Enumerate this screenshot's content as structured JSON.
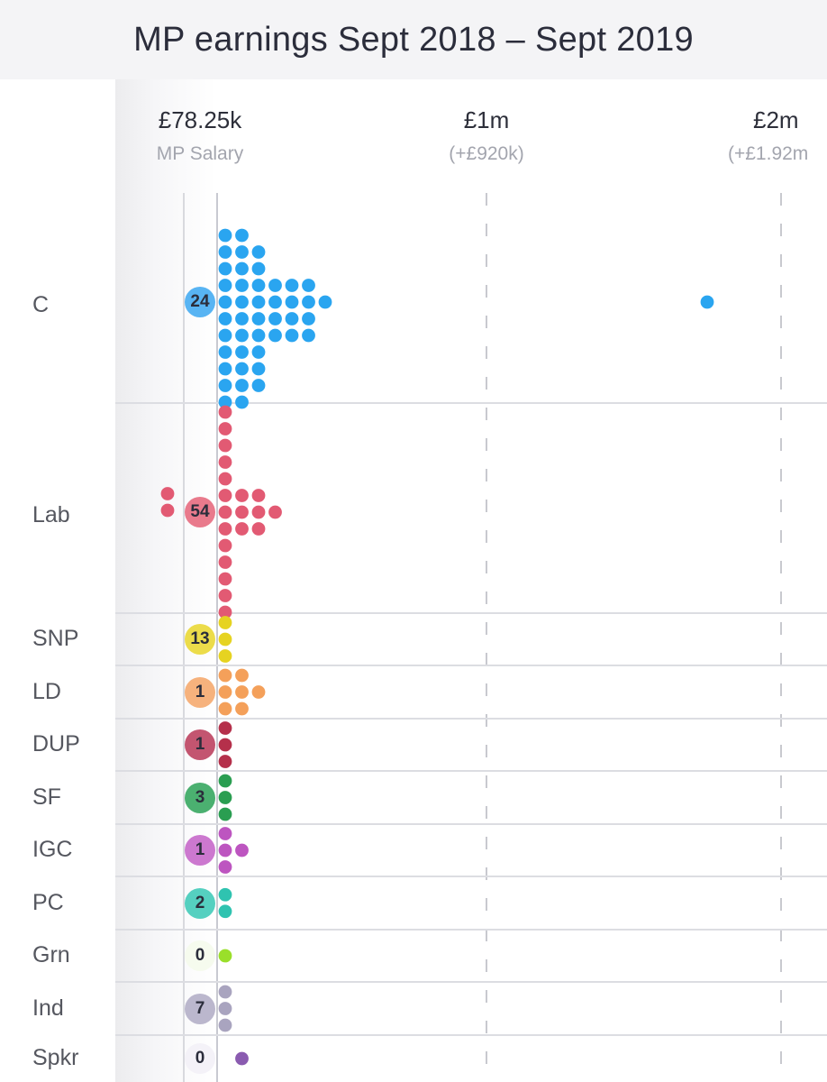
{
  "title": "MP earnings Sept 2018 – Sept 2019",
  "axis": [
    {
      "value": "£78.25k",
      "note": "MP Salary"
    },
    {
      "value": "£1m",
      "note": "(+£920k)"
    },
    {
      "value": "£2m",
      "note": "(+£1.92m"
    }
  ],
  "chart_data": {
    "type": "scatter",
    "title": "MP earnings Sept 2018 – Sept 2019",
    "xlabel": "",
    "ylabel": "",
    "x_ticks": [
      "£78.25k",
      "£1m",
      "£2m"
    ],
    "x_tick_notes": [
      "MP Salary",
      "(+£920k)",
      "(+£1.92m"
    ],
    "categories": [
      "C",
      "Lab",
      "SNP",
      "LD",
      "DUP",
      "SF",
      "IGC",
      "PC",
      "Grn",
      "Ind",
      "Spkr"
    ],
    "no_extra_earnings_counts": [
      24,
      54,
      13,
      1,
      1,
      3,
      1,
      2,
      0,
      7,
      0
    ],
    "grid": "horizontal separators, dashed vertical lines at £1m and £2m",
    "series": [
      {
        "category": "C",
        "color": "#2aa5f0",
        "badge_color": "#58b4f3",
        "columns": [
          [
            0,
            0,
            1,
            1,
            1,
            1,
            1,
            1,
            1,
            1,
            1,
            1,
            1
          ],
          [
            0,
            0,
            1,
            1,
            1,
            1,
            1,
            1,
            1,
            1,
            1,
            1,
            1
          ],
          [
            0,
            0,
            0,
            1,
            1,
            1,
            1,
            1,
            1,
            1,
            1,
            1,
            0
          ],
          [
            0,
            0,
            0,
            0,
            0,
            1,
            1,
            1,
            1,
            0,
            0,
            0,
            0
          ],
          [
            0,
            0,
            0,
            0,
            0,
            1,
            1,
            1,
            1,
            0,
            0,
            0,
            0
          ],
          [
            0,
            0,
            0,
            0,
            0,
            1,
            1,
            1,
            1,
            0,
            0,
            0,
            0
          ],
          [
            0,
            0,
            0,
            0,
            0,
            0,
            1,
            0,
            0,
            0,
            0,
            0,
            0
          ]
        ],
        "outliers": [
          {
            "x_position": "approx £1.8m",
            "row": 6
          }
        ]
      },
      {
        "category": "Lab",
        "color": "#e25a73",
        "badge_color": "#e97a8c",
        "columns": [
          [
            1,
            1,
            1,
            1,
            1,
            1,
            1,
            1,
            1,
            1,
            1,
            1,
            1
          ],
          [
            0,
            0,
            0,
            0,
            0,
            1,
            1,
            1,
            0,
            0,
            0,
            0,
            0
          ],
          [
            0,
            0,
            0,
            0,
            0,
            1,
            1,
            1,
            0,
            0,
            0,
            0,
            0
          ],
          [
            0,
            0,
            0,
            0,
            0,
            0,
            1,
            0,
            0,
            0,
            0,
            0,
            0
          ]
        ],
        "below": [
          {
            "column": -2,
            "rows": [
              5,
              6
            ]
          }
        ]
      },
      {
        "category": "SNP",
        "color": "#e6d321",
        "badge_color": "#ecdc4a",
        "columns": [
          [
            1,
            1,
            1
          ]
        ]
      },
      {
        "category": "LD",
        "color": "#f4a05a",
        "badge_color": "#f6b27d",
        "columns": [
          [
            1,
            1,
            1
          ],
          [
            1,
            1,
            1
          ],
          [
            0,
            1,
            0
          ]
        ]
      },
      {
        "category": "DUP",
        "color": "#b5304b",
        "badge_color": "#c35570",
        "columns": [
          [
            1,
            1,
            1
          ]
        ]
      },
      {
        "category": "SF",
        "color": "#2a9e51",
        "badge_color": "#4bb070",
        "columns": [
          [
            1,
            1,
            1
          ]
        ]
      },
      {
        "category": "IGC",
        "color": "#bd55c0",
        "badge_color": "#cc78cf",
        "columns": [
          [
            1,
            1,
            1
          ],
          [
            0,
            1,
            0
          ]
        ]
      },
      {
        "category": "PC",
        "color": "#2fc3b0",
        "badge_color": "#55d0c0",
        "columns": [
          [
            1,
            1
          ]
        ]
      },
      {
        "category": "Grn",
        "color": "#9adf2a",
        "badge_color": "#f6fbee",
        "columns": [
          [
            1
          ]
        ]
      },
      {
        "category": "Ind",
        "color": "#a9a4bf",
        "badge_color": "#bbb7cd",
        "columns": [
          [
            1,
            1,
            1
          ]
        ]
      },
      {
        "category": "Spkr",
        "color": "#8a5bb0",
        "badge_color": "#f4f2f8",
        "columns": [
          [
            0
          ],
          [
            1
          ]
        ]
      }
    ]
  }
}
